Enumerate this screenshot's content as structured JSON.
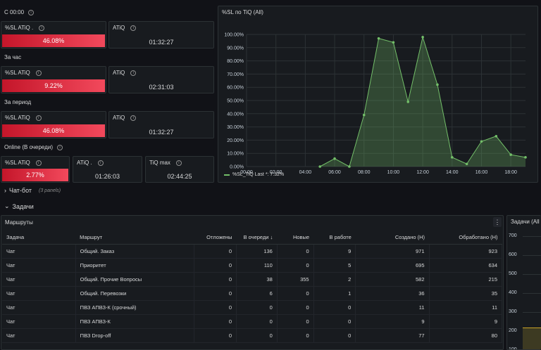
{
  "sections": {
    "s00": "С 00:00",
    "hour": "За час",
    "period": "За период",
    "online": "Online (В очереди)"
  },
  "stats": {
    "s00_sl_title": "%SL ATiQ .",
    "s00_sl_value": "46.08%",
    "s00_atiq_title": "ATiQ",
    "s00_atiq_value": "01:32:27",
    "hour_sl_title": "%SL ATiQ",
    "hour_sl_value": "9.22%",
    "hour_atiq_title": "ATiQ",
    "hour_atiq_value": "02:31:03",
    "period_sl_title": "%SL ATiQ",
    "period_sl_value": "46.08%",
    "period_atiq_title": "ATiQ",
    "period_atiq_value": "01:32:27",
    "online_sl_title": "%SL ATiQ",
    "online_sl_value": "2.77%",
    "online_atiq_title": "ATiQ .",
    "online_atiq_value": "01:26:03",
    "online_tiqmax_title": "TiQ max",
    "online_tiqmax_value": "02:44:25"
  },
  "colors": {
    "accent_red": "#f2495c",
    "series_green": "#73bf69",
    "background": "#111217",
    "panel": "#181b1f"
  },
  "chart_data": {
    "type": "area",
    "title": "%SL по TiQ (All)",
    "x_ticks": [
      "00:00",
      "02:00",
      "04:00",
      "06:00",
      "08:00",
      "10:00",
      "12:00",
      "14:00",
      "16:00",
      "18:00"
    ],
    "y_ticks": [
      "0.00%",
      "10.00%",
      "20.00%",
      "30.00%",
      "40.00%",
      "50.00%",
      "60.00%",
      "70.00%",
      "80.00%",
      "90.00%",
      "100.00%"
    ],
    "xlim": [
      0,
      19
    ],
    "ylim": [
      0,
      100
    ],
    "series": [
      {
        "name": "%SL_TiQ",
        "x": [
          5,
          6,
          7,
          8,
          9,
          10,
          11,
          12,
          13,
          14,
          15,
          16,
          17,
          18,
          19
        ],
        "y": [
          0,
          6,
          0,
          39,
          97,
          94,
          49,
          98,
          62,
          7,
          2,
          19,
          23,
          9,
          7
        ]
      }
    ],
    "legend_text": "%SL_TiQ   Last *: 7.32%",
    "grid": true
  },
  "rows": {
    "chatbot_label": "Чат-бот",
    "chatbot_count": "(3 panels)",
    "tasks_label": "Задачи"
  },
  "table": {
    "title": "Маршруты",
    "menu_icon": "⋮",
    "headers": [
      "Задача",
      "Маршрут",
      "Отложены",
      "В очереди ↓",
      "Новые",
      "В работе",
      "Создано (Н)",
      "Обработано (Н)"
    ],
    "rows": [
      [
        "Чат",
        "Общий. Заказ",
        "0",
        "136",
        "0",
        "9",
        "971",
        "923"
      ],
      [
        "Чат",
        "Приоритет",
        "0",
        "110",
        "0",
        "5",
        "695",
        "634"
      ],
      [
        "Чат",
        "Общий. Прочие Вопросы",
        "0",
        "38",
        "355",
        "2",
        "582",
        "215"
      ],
      [
        "Чат",
        "Общий. Перевозки",
        "0",
        "6",
        "0",
        "1",
        "36",
        "35"
      ],
      [
        "Чат",
        "ПВЗ АПВЗ-К (срочный)",
        "0",
        "0",
        "0",
        "0",
        "11",
        "11"
      ],
      [
        "Чат",
        "ПВЗ АПВЗ-К",
        "0",
        "0",
        "0",
        "0",
        "9",
        "9"
      ],
      [
        "Чат",
        "ПВЗ Drop-off",
        "0",
        "0",
        "0",
        "0",
        "77",
        "80"
      ]
    ]
  },
  "side_panel": {
    "title": "Задачи (All",
    "y_ticks": [
      "700",
      "600",
      "500",
      "400",
      "300",
      "200",
      "100"
    ]
  }
}
